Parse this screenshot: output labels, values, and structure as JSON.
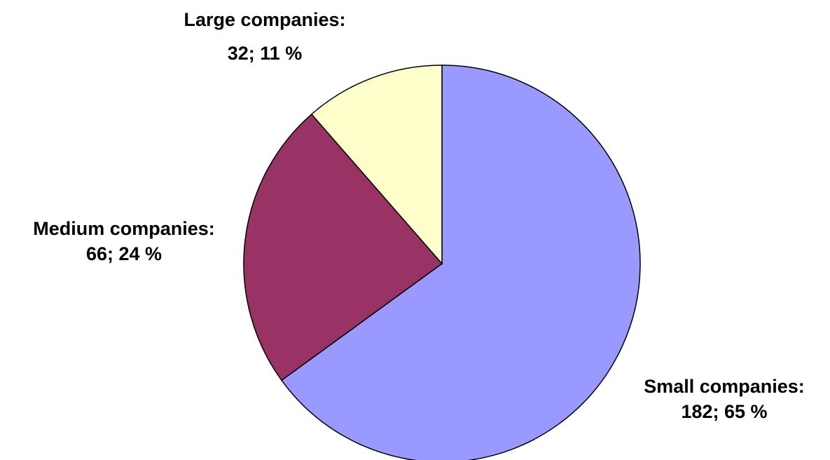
{
  "chart_data": {
    "type": "pie",
    "title": "",
    "start_angle_deg": 0,
    "direction": "clockwise",
    "slices": [
      {
        "name": "Small companies",
        "value": 182,
        "percent": 65,
        "label_line1": "Small companies:",
        "label_line2": "182; 65 %",
        "color": "#9999ff",
        "label_anchor": "right"
      },
      {
        "name": "Medium companies",
        "value": 66,
        "percent": 24,
        "label_line1": "Medium companies:",
        "label_line2": "66; 24 %",
        "color": "#993366",
        "label_anchor": "left"
      },
      {
        "name": "Large companies",
        "value": 32,
        "percent": 11,
        "label_line1": "Large companies:",
        "label_line2": "32; 11 %",
        "color": "#ffffcc",
        "label_anchor": "top"
      }
    ]
  }
}
